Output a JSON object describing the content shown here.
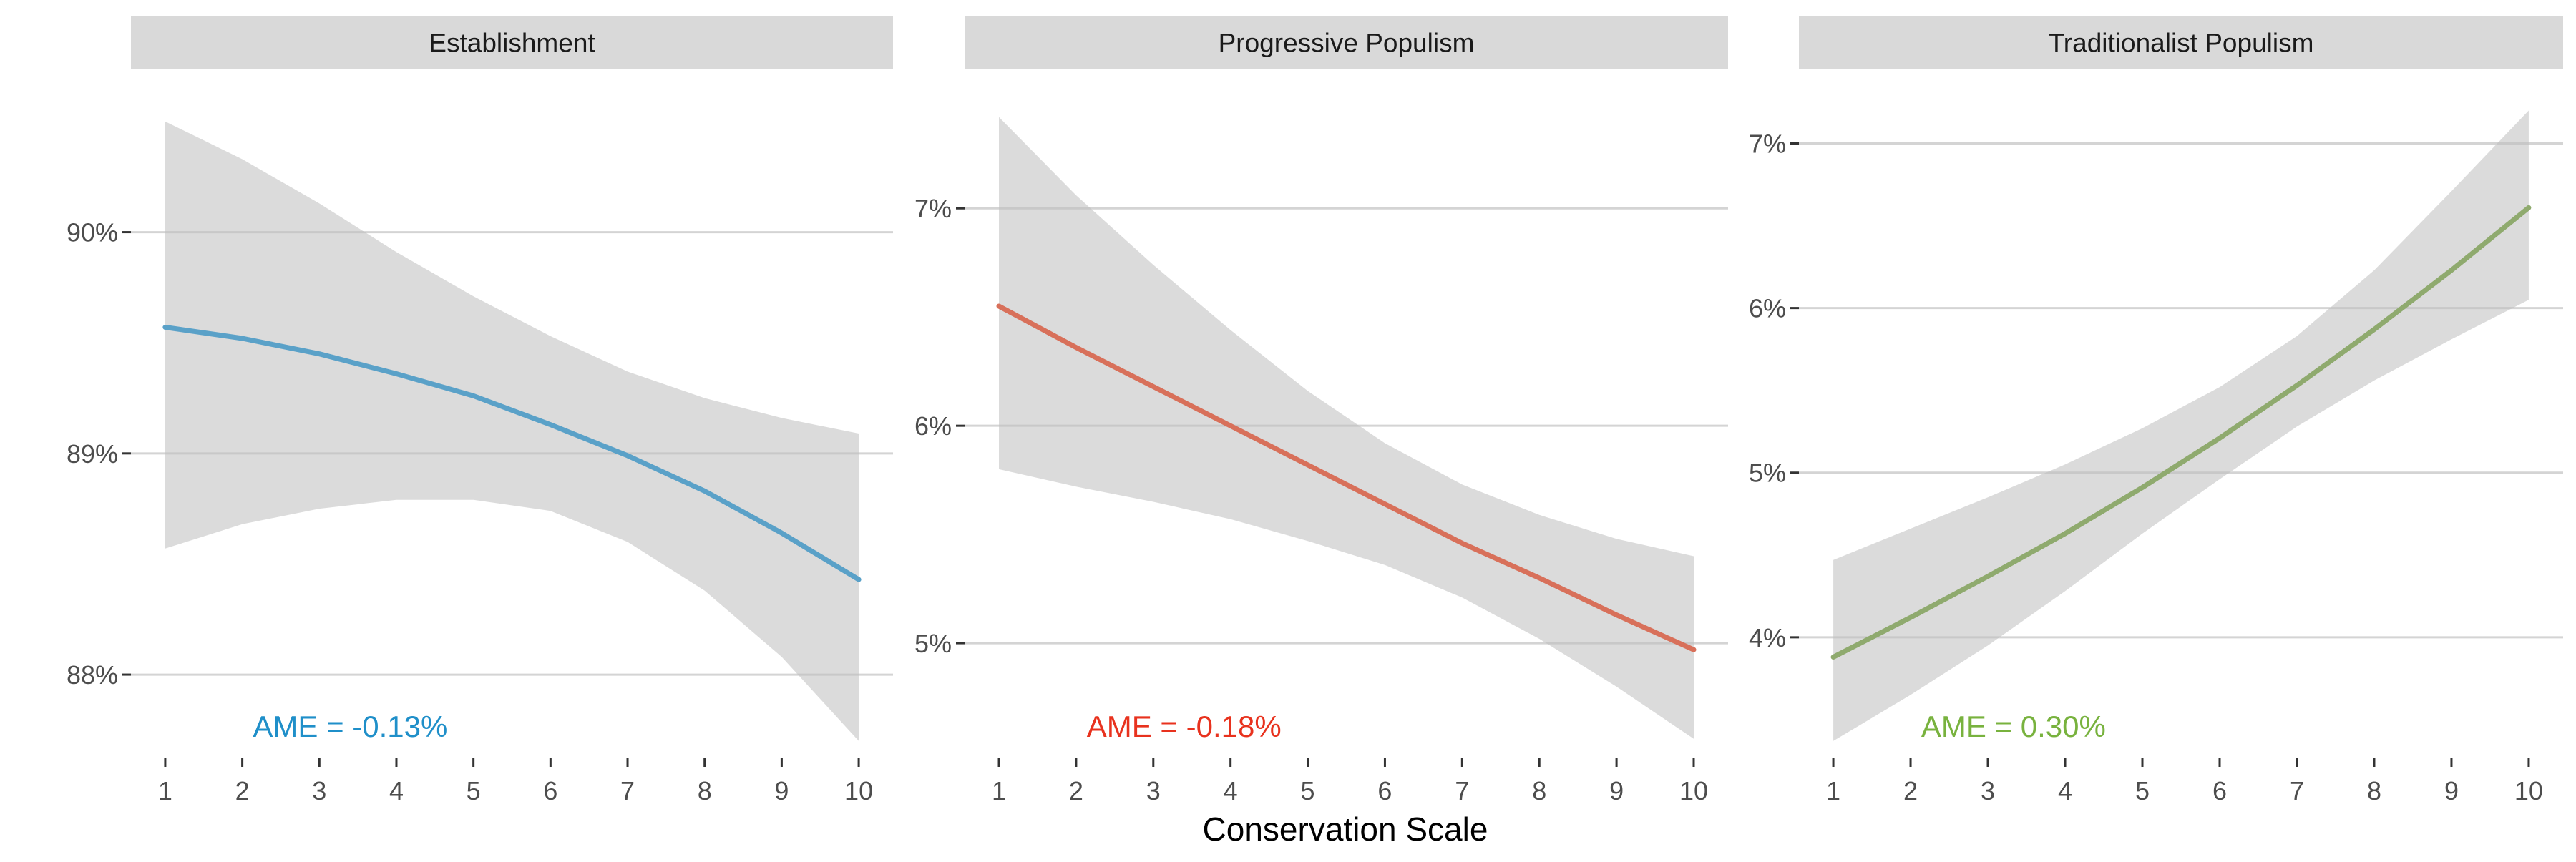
{
  "chart_data": {
    "type": "line",
    "xlabel": "Conservation Scale",
    "x": [
      1,
      2,
      3,
      4,
      5,
      6,
      7,
      8,
      9,
      10
    ],
    "panels": [
      {
        "title": "Establishment",
        "color": "#5aa1c8",
        "annotation_color": "#1f8fc9",
        "annotation": "AME = -0.13%",
        "yticks": [
          "88%",
          "89%",
          "90%"
        ],
        "ytick_values": [
          88,
          89,
          90
        ],
        "ylim": [
          87.7,
          90.55
        ],
        "values": [
          89.57,
          89.52,
          89.45,
          89.36,
          89.26,
          89.13,
          88.99,
          88.83,
          88.64,
          88.43
        ],
        "ci_lower": [
          88.57,
          88.68,
          88.75,
          88.79,
          88.79,
          88.74,
          88.6,
          88.38,
          88.08,
          87.7
        ],
        "ci_upper": [
          90.5,
          90.33,
          90.13,
          89.91,
          89.71,
          89.53,
          89.37,
          89.25,
          89.16,
          89.09
        ]
      },
      {
        "title": "Progressive Populism",
        "color": "#d8705a",
        "annotation_color": "#e8321e",
        "annotation": "AME = -0.18%",
        "yticks": [
          "5%",
          "6%",
          "7%"
        ],
        "ytick_values": [
          5,
          6,
          7
        ],
        "ylim": [
          4.55,
          7.45
        ],
        "values": [
          6.55,
          6.36,
          6.18,
          6.0,
          5.82,
          5.64,
          5.46,
          5.3,
          5.13,
          4.97
        ],
        "ci_lower": [
          5.8,
          5.72,
          5.65,
          5.57,
          5.47,
          5.36,
          5.21,
          5.02,
          4.8,
          4.56
        ],
        "ci_upper": [
          7.42,
          7.06,
          6.74,
          6.44,
          6.16,
          5.92,
          5.73,
          5.59,
          5.48,
          5.4
        ]
      },
      {
        "title": "Traditionalist Populism",
        "color": "#8faa6e",
        "annotation_color": "#78b23e",
        "annotation": "AME = 0.30%",
        "yticks": [
          "4%",
          "5%",
          "6%",
          "7%"
        ],
        "ytick_values": [
          4,
          5,
          6,
          7
        ],
        "ylim": [
          3.37,
          7.2
        ],
        "values": [
          3.88,
          4.12,
          4.37,
          4.63,
          4.91,
          5.21,
          5.53,
          5.87,
          6.23,
          6.61
        ],
        "ci_lower": [
          3.37,
          3.65,
          3.95,
          4.28,
          4.63,
          4.96,
          5.28,
          5.56,
          5.81,
          6.05
        ],
        "ci_upper": [
          4.47,
          4.66,
          4.85,
          5.05,
          5.27,
          5.52,
          5.83,
          6.23,
          6.71,
          7.2
        ]
      }
    ]
  }
}
